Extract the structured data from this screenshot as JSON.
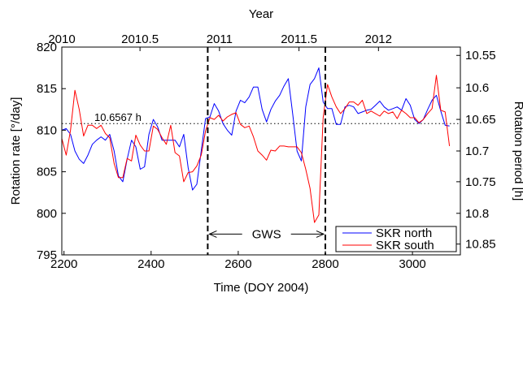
{
  "chart_data": {
    "type": "line",
    "x_label": "Time (DOY 2004)",
    "y_label": "Rotation rate [°/day]",
    "top_axis_label": "Year",
    "right_axis_label": "Rotation period [h]",
    "xlim": [
      2195,
      3110
    ],
    "ylim": [
      795,
      820
    ],
    "x_ticks": [
      2200,
      2400,
      2600,
      2800,
      3000
    ],
    "y_ticks": [
      795,
      800,
      805,
      810,
      815,
      820
    ],
    "top_ticks": [
      {
        "label": "2010",
        "doy": 2192
      },
      {
        "label": "2010.5",
        "doy": 2374.5
      },
      {
        "label": "2011",
        "doy": 2557
      },
      {
        "label": "2011.5",
        "doy": 2739.5
      },
      {
        "label": "2012",
        "doy": 2922
      }
    ],
    "right_ticks": [
      {
        "label": "10.55",
        "rate": 819.0
      },
      {
        "label": "10.6",
        "rate": 815.1
      },
      {
        "label": "10.65",
        "rate": 811.3
      },
      {
        "label": "10.7",
        "rate": 807.5
      },
      {
        "label": "10.75",
        "rate": 803.8
      },
      {
        "label": "10.8",
        "rate": 800.0
      },
      {
        "label": "10.85",
        "rate": 796.3
      }
    ],
    "reference_line": {
      "label": "10.6567 h",
      "rate": 810.8
    },
    "vertical_lines": [
      2530,
      2800
    ],
    "span_annotation": {
      "label": "GWS",
      "x_start": 2530,
      "x_end": 2800,
      "rate": 797.5
    },
    "legend": {
      "placement": "bottom-right"
    },
    "series": [
      {
        "name": "SKR north",
        "color": "#0000ff",
        "x": [
          2195,
          2205,
          2215,
          2225,
          2235,
          2245,
          2255,
          2265,
          2275,
          2285,
          2295,
          2305,
          2315,
          2325,
          2335,
          2345,
          2355,
          2365,
          2375,
          2385,
          2395,
          2405,
          2415,
          2425,
          2435,
          2445,
          2455,
          2465,
          2475,
          2485,
          2495,
          2505,
          2515,
          2525,
          2535,
          2545,
          2555,
          2565,
          2575,
          2585,
          2595,
          2605,
          2615,
          2625,
          2635,
          2645,
          2655,
          2665,
          2675,
          2685,
          2695,
          2705,
          2715,
          2725,
          2735,
          2745,
          2755,
          2765,
          2775,
          2785,
          2795,
          2805,
          2815,
          2825,
          2835,
          2845,
          2855,
          2865,
          2875,
          2885,
          2895,
          2905,
          2915,
          2925,
          2935,
          2945,
          2955,
          2965,
          2975,
          2985,
          2995,
          3005,
          3015,
          3025,
          3035,
          3045,
          3055,
          3065,
          3075,
          3085
        ],
        "values": [
          810.0,
          810.2,
          809.5,
          807.5,
          806.5,
          806.0,
          807.0,
          808.3,
          808.8,
          809.2,
          808.8,
          809.5,
          807.5,
          804.5,
          803.8,
          806.5,
          808.8,
          808.0,
          805.3,
          805.6,
          809.5,
          811.3,
          810.4,
          808.8,
          808.8,
          808.8,
          808.8,
          808.0,
          809.5,
          805.5,
          802.8,
          803.5,
          807.5,
          811.4,
          811.6,
          813.2,
          812.3,
          810.8,
          810.0,
          809.4,
          812.3,
          813.6,
          813.3,
          814.0,
          815.2,
          815.2,
          812.5,
          811.0,
          812.5,
          813.5,
          814.2,
          815.3,
          816.2,
          812.0,
          807.5,
          806.3,
          812.8,
          815.5,
          816.2,
          817.5,
          813.4,
          812.6,
          812.6,
          810.7,
          810.7,
          812.8,
          813.0,
          812.8,
          812.0,
          812.2,
          812.4,
          812.5,
          813.0,
          813.5,
          812.8,
          812.4,
          812.6,
          812.8,
          812.4,
          813.8,
          813.0,
          811.3,
          810.8,
          811.3,
          812.5,
          813.6,
          814.2,
          812.3,
          810.6,
          810.5
        ]
      },
      {
        "name": "SKR south",
        "color": "#ff0000",
        "x": [
          2195,
          2205,
          2215,
          2225,
          2235,
          2245,
          2255,
          2265,
          2275,
          2285,
          2295,
          2305,
          2315,
          2325,
          2335,
          2345,
          2355,
          2365,
          2375,
          2385,
          2395,
          2405,
          2415,
          2425,
          2435,
          2445,
          2455,
          2465,
          2475,
          2485,
          2495,
          2505,
          2515,
          2525,
          2535,
          2545,
          2555,
          2565,
          2575,
          2585,
          2595,
          2605,
          2615,
          2625,
          2635,
          2645,
          2655,
          2665,
          2675,
          2685,
          2695,
          2705,
          2715,
          2725,
          2735,
          2745,
          2755,
          2765,
          2775,
          2785,
          2795,
          2805,
          2815,
          2825,
          2835,
          2845,
          2855,
          2865,
          2875,
          2885,
          2895,
          2905,
          2915,
          2925,
          2935,
          2945,
          2955,
          2965,
          2975,
          2985,
          2995,
          3005,
          3015,
          3025,
          3035,
          3045,
          3055,
          3065,
          3075,
          3085
        ],
        "values": [
          809.0,
          807.0,
          810.0,
          814.8,
          812.5,
          809.3,
          810.6,
          810.6,
          810.2,
          810.6,
          809.6,
          809.1,
          806.0,
          804.3,
          804.3,
          806.6,
          806.3,
          809.4,
          808.2,
          807.5,
          807.5,
          810.5,
          810.1,
          809.1,
          808.3,
          810.6,
          807.3,
          806.9,
          803.8,
          804.9,
          805.0,
          805.7,
          807.0,
          809.9,
          811.5,
          811.3,
          811.8,
          811.1,
          811.6,
          811.9,
          812.1,
          810.7,
          810.3,
          810.5,
          809.2,
          807.5,
          807.0,
          806.4,
          807.6,
          807.5,
          808.1,
          808.1,
          808.0,
          808.0,
          808.0,
          807.3,
          805.3,
          803.0,
          798.9,
          799.8,
          811.5,
          815.5,
          814.0,
          812.8,
          812.0,
          812.6,
          813.4,
          813.4,
          813.0,
          813.6,
          812.0,
          812.3,
          812.0,
          811.7,
          812.3,
          812.0,
          812.2,
          811.4,
          812.4,
          812.0,
          811.5,
          811.5,
          810.9,
          811.3,
          812.0,
          812.6,
          816.6,
          812.4,
          812.2,
          808.1
        ]
      }
    ]
  }
}
